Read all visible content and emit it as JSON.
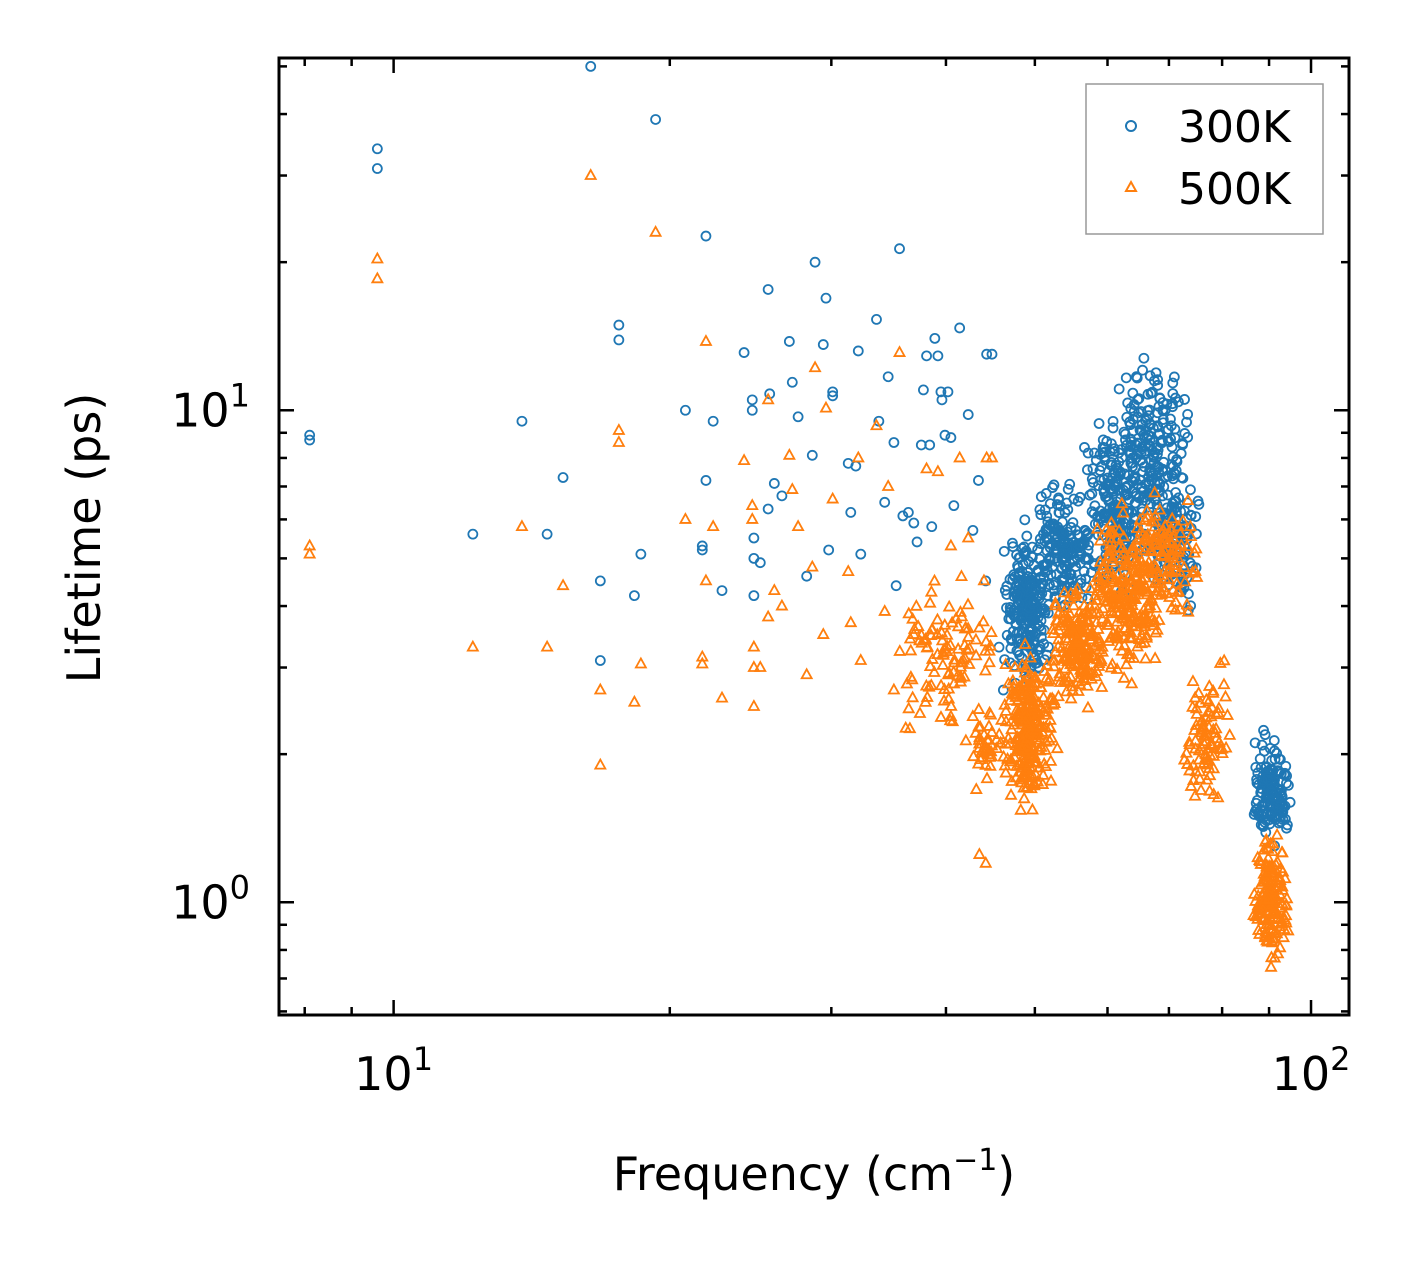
{
  "chart_data": {
    "type": "scatter",
    "title": "",
    "xlabel": "Frequency",
    "xlabel_unit": "(cm",
    "xlabel_sup": "−1",
    "xlabel_close": ")",
    "ylabel": "Lifetime (ps)",
    "xscale": "log",
    "yscale": "log",
    "xlim": [
      7.5,
      110
    ],
    "ylim": [
      0.59,
      52
    ],
    "x_ticks": [
      {
        "value": 10,
        "base": "10",
        "exp": "1"
      },
      {
        "value": 100,
        "base": "10",
        "exp": "2"
      }
    ],
    "y_ticks": [
      {
        "value": 1,
        "base": "10",
        "exp": "0"
      },
      {
        "value": 10,
        "base": "10",
        "exp": "1"
      }
    ],
    "legend_position": "top-right",
    "series": [
      {
        "name": "300K",
        "marker": "circle",
        "color": "#1f77b4",
        "points": [
          [
            8.1,
            8.9
          ],
          [
            8.1,
            8.7
          ],
          [
            9.6,
            34
          ],
          [
            9.6,
            31
          ],
          [
            12.2,
            5.6
          ],
          [
            13.8,
            9.5
          ],
          [
            14.7,
            5.6
          ],
          [
            15.3,
            7.3
          ],
          [
            16.4,
            50
          ],
          [
            16.8,
            4.5
          ],
          [
            16.8,
            3.1
          ],
          [
            17.6,
            14.9
          ],
          [
            17.6,
            13.9
          ],
          [
            18.3,
            4.2
          ],
          [
            18.6,
            5.1
          ],
          [
            19.3,
            39
          ],
          [
            20.8,
            10
          ],
          [
            21.7,
            5.3
          ],
          [
            21.7,
            5.2
          ],
          [
            21.9,
            22.6
          ],
          [
            21.9,
            7.2
          ],
          [
            22.3,
            9.5
          ],
          [
            22.8,
            4.3
          ],
          [
            24.1,
            13.1
          ],
          [
            24.6,
            10.5
          ],
          [
            24.6,
            10
          ],
          [
            24.7,
            5.5
          ],
          [
            24.7,
            5
          ],
          [
            24.7,
            4.2
          ],
          [
            25.1,
            4.9
          ],
          [
            25.6,
            17.6
          ],
          [
            25.6,
            6.3
          ],
          [
            25.7,
            10.8
          ],
          [
            26,
            7.1
          ],
          [
            26.5,
            6.7
          ],
          [
            27,
            13.8
          ],
          [
            27.2,
            11.4
          ],
          [
            27.6,
            9.7
          ],
          [
            28.2,
            4.6
          ],
          [
            28.6,
            8.1
          ],
          [
            28.8,
            20
          ],
          [
            29.4,
            13.6
          ],
          [
            29.6,
            16.9
          ],
          [
            30.1,
            10.9
          ],
          [
            30.1,
            10.7
          ],
          [
            29.8,
            5.2
          ],
          [
            31.3,
            7.8
          ],
          [
            31.5,
            6.2
          ],
          [
            31.9,
            7.7
          ],
          [
            32.3,
            5.1
          ],
          [
            32.1,
            13.2
          ],
          [
            33.6,
            15.3
          ],
          [
            33.8,
            9.5
          ],
          [
            34.3,
            6.5
          ],
          [
            34.6,
            11.7
          ],
          [
            35.1,
            8.6
          ],
          [
            35.3,
            4.4
          ],
          [
            35.6,
            21.3
          ],
          [
            35.9,
            6.1
          ],
          [
            36.4,
            6.2
          ],
          [
            36.9,
            5.9
          ],
          [
            37.2,
            5.4
          ],
          [
            37.6,
            8.5
          ],
          [
            37.8,
            11
          ],
          [
            38.1,
            12.9
          ],
          [
            38.4,
            8.5
          ],
          [
            38.6,
            5.8
          ],
          [
            38.9,
            14
          ],
          [
            39.2,
            12.9
          ],
          [
            39.5,
            10.9
          ],
          [
            39.6,
            10.5
          ],
          [
            39.9,
            8.9
          ],
          [
            40.2,
            10.9
          ],
          [
            40.5,
            8.8
          ],
          [
            40.8,
            6.4
          ],
          [
            41.4,
            14.7
          ],
          [
            42.3,
            9.8
          ],
          [
            42.8,
            5.7
          ],
          [
            43.4,
            7.2
          ],
          [
            44.2,
            4.5
          ],
          [
            44.3,
            13
          ],
          [
            44.9,
            13
          ],
          [
            45.7,
            3.3
          ],
          [
            46.2,
            2.7
          ]
        ],
        "clusters": [
          {
            "x": [
              46,
              52
            ],
            "y": [
              2.6,
              6.2
            ],
            "n": 240
          },
          {
            "x": [
              50,
              58
            ],
            "y": [
              3.6,
              7.6
            ],
            "n": 180
          },
          {
            "x": [
              56,
              66
            ],
            "y": [
              3.6,
              10.8
            ],
            "n": 220
          },
          {
            "x": [
              61,
              74
            ],
            "y": [
              5,
              13.8
            ],
            "n": 200
          },
          {
            "x": [
              66,
              76
            ],
            "y": [
              3.5,
              9
            ],
            "n": 120
          },
          {
            "x": [
              86,
              95
            ],
            "y": [
              1.2,
              2.4
            ],
            "n": 150
          }
        ]
      },
      {
        "name": "500K",
        "marker": "triangle",
        "color": "#ff7f0e",
        "points": [
          [
            8.1,
            5.3
          ],
          [
            8.1,
            5.1
          ],
          [
            9.6,
            20.3
          ],
          [
            9.6,
            18.5
          ],
          [
            12.2,
            3.3
          ],
          [
            13.8,
            5.8
          ],
          [
            14.7,
            3.3
          ],
          [
            15.3,
            4.4
          ],
          [
            16.4,
            30
          ],
          [
            16.8,
            2.7
          ],
          [
            16.8,
            1.9
          ],
          [
            17.6,
            9.1
          ],
          [
            17.6,
            8.6
          ],
          [
            18.3,
            2.55
          ],
          [
            18.6,
            3.05
          ],
          [
            19.3,
            23
          ],
          [
            20.8,
            6
          ],
          [
            21.7,
            3.15
          ],
          [
            21.7,
            3.05
          ],
          [
            21.9,
            13.8
          ],
          [
            21.9,
            4.5
          ],
          [
            22.3,
            5.8
          ],
          [
            22.8,
            2.6
          ],
          [
            24.1,
            7.9
          ],
          [
            24.6,
            6.4
          ],
          [
            24.6,
            6
          ],
          [
            24.7,
            3.3
          ],
          [
            24.7,
            3
          ],
          [
            24.7,
            2.5
          ],
          [
            25.1,
            3
          ],
          [
            25.6,
            10.5
          ],
          [
            25.6,
            3.8
          ],
          [
            26,
            4.3
          ],
          [
            26.5,
            4
          ],
          [
            27,
            8.1
          ],
          [
            27.2,
            6.9
          ],
          [
            27.6,
            5.8
          ],
          [
            28.2,
            2.9
          ],
          [
            28.6,
            4.8
          ],
          [
            28.8,
            12.2
          ],
          [
            29.4,
            3.5
          ],
          [
            29.6,
            10.1
          ],
          [
            30.1,
            6.6
          ],
          [
            31.3,
            4.7
          ],
          [
            31.5,
            3.7
          ],
          [
            32.3,
            3.1
          ],
          [
            32.1,
            8
          ],
          [
            33.6,
            9.3
          ],
          [
            34.3,
            3.9
          ],
          [
            34.6,
            7
          ],
          [
            35.1,
            2.7
          ],
          [
            35.6,
            13.1
          ],
          [
            36.9,
            3.5
          ],
          [
            38.1,
            7.6
          ],
          [
            39.2,
            7.5
          ],
          [
            40.5,
            5.3
          ],
          [
            41.4,
            8
          ],
          [
            42.3,
            5.5
          ],
          [
            43.5,
            1.25
          ],
          [
            44.2,
            1.2
          ],
          [
            44.3,
            8
          ],
          [
            44.9,
            8
          ]
        ],
        "clusters": [
          {
            "x": [
              35,
              46
            ],
            "y": [
              2,
              5
            ],
            "n": 110
          },
          {
            "x": [
              42,
              47
            ],
            "y": [
              1.6,
              2.6
            ],
            "n": 40
          },
          {
            "x": [
              46,
              53
            ],
            "y": [
              1.4,
              3.6
            ],
            "n": 260
          },
          {
            "x": [
              52,
              60
            ],
            "y": [
              2.4,
              4.6
            ],
            "n": 200
          },
          {
            "x": [
              57,
              69
            ],
            "y": [
              2.6,
              6.8
            ],
            "n": 240
          },
          {
            "x": [
              64,
              76
            ],
            "y": [
              3.4,
              7.2
            ],
            "n": 120
          },
          {
            "x": [
              72,
              82
            ],
            "y": [
              1.4,
              3.4
            ],
            "n": 90
          },
          {
            "x": [
              86,
              95
            ],
            "y": [
              0.7,
              1.5
            ],
            "n": 160
          }
        ]
      }
    ]
  }
}
